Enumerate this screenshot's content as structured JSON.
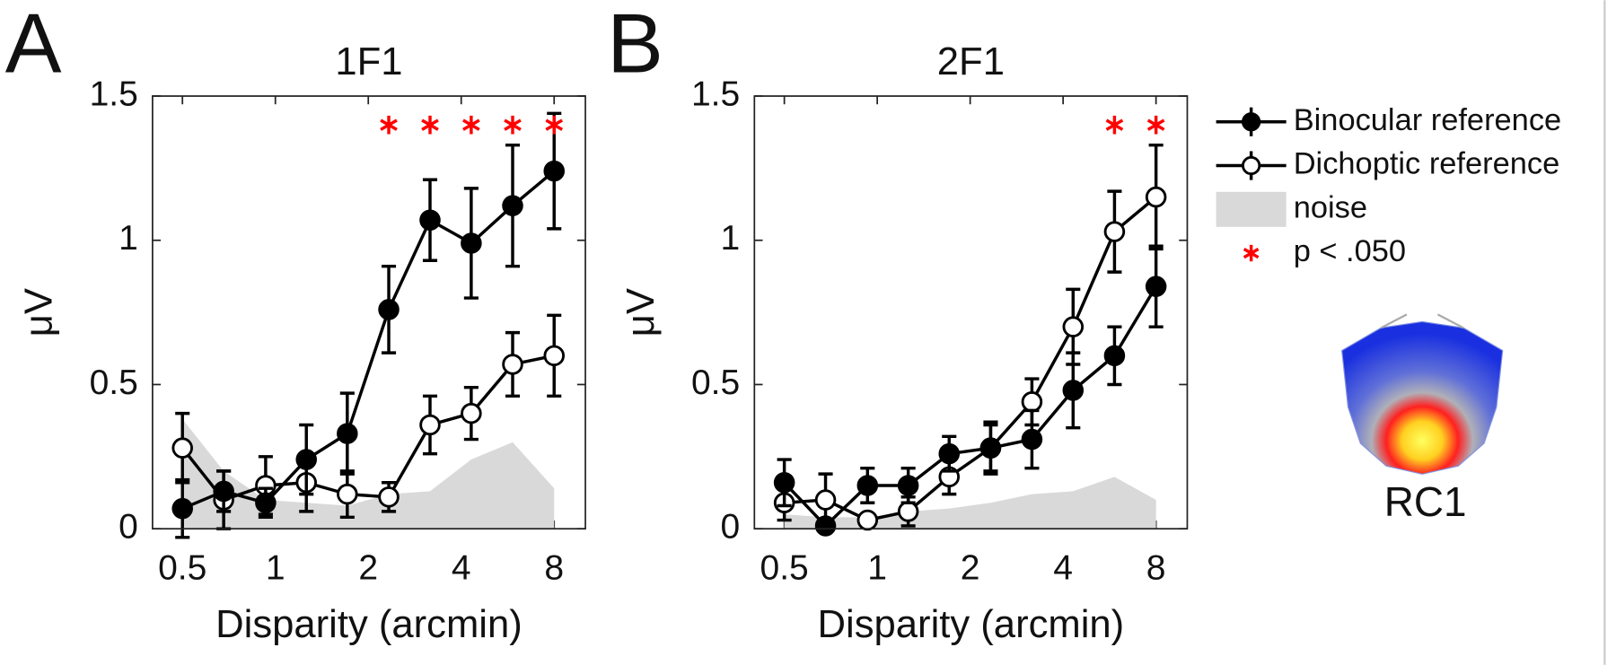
{
  "chart_data": [
    {
      "type": "line",
      "panel_label": "A",
      "title": "1F1",
      "xlabel": "Disparity (arcmin)",
      "ylabel": "μV",
      "xscale": "log",
      "xlim": [
        0.4,
        10.1
      ],
      "xticks": [
        0.5,
        1,
        2,
        4,
        8
      ],
      "ylim": [
        0,
        1.5
      ],
      "yticks": [
        0,
        0.5,
        1,
        1.5
      ],
      "x": [
        0.5,
        0.68,
        0.93,
        1.26,
        1.71,
        2.33,
        3.17,
        4.31,
        5.87,
        8
      ],
      "series": [
        {
          "name": "noise",
          "marker": "area",
          "color": "#d9d9d9",
          "values": [
            0.38,
            0.2,
            0.1,
            0.09,
            0.08,
            0.12,
            0.13,
            0.24,
            0.3,
            0.14
          ]
        },
        {
          "name": "Dichoptic reference",
          "marker": "open",
          "color": "#000000",
          "values": [
            0.28,
            0.1,
            0.15,
            0.16,
            0.12,
            0.11,
            0.36,
            0.4,
            0.57,
            0.6
          ],
          "errors": [
            0.12,
            0.1,
            0.1,
            0.1,
            0.08,
            0.05,
            0.1,
            0.09,
            0.11,
            0.14
          ]
        },
        {
          "name": "Binocular reference",
          "marker": "filled",
          "color": "#000000",
          "values": [
            0.07,
            0.13,
            0.09,
            0.24,
            0.33,
            0.76,
            1.07,
            0.99,
            1.12,
            1.24
          ],
          "errors": [
            0.1,
            0.07,
            0.05,
            0.12,
            0.14,
            0.15,
            0.14,
            0.19,
            0.21,
            0.2
          ]
        },
        {
          "name": "p < .050",
          "marker": "asterisk",
          "color": "#ff0000",
          "values": [
            null,
            null,
            null,
            null,
            null,
            1.4,
            1.4,
            1.4,
            1.4,
            1.4
          ]
        }
      ]
    },
    {
      "type": "line",
      "panel_label": "B",
      "title": "2F1",
      "xlabel": "Disparity (arcmin)",
      "ylabel": "μV",
      "xscale": "log",
      "xlim": [
        0.4,
        10.1
      ],
      "xticks": [
        0.5,
        1,
        2,
        4,
        8
      ],
      "ylim": [
        0,
        1.5
      ],
      "yticks": [
        0,
        0.5,
        1,
        1.5
      ],
      "x": [
        0.5,
        0.68,
        0.93,
        1.26,
        1.71,
        2.33,
        3.17,
        4.31,
        5.87,
        8
      ],
      "series": [
        {
          "name": "noise",
          "marker": "area",
          "color": "#d9d9d9",
          "values": [
            0.05,
            0.04,
            0.04,
            0.06,
            0.07,
            0.09,
            0.12,
            0.13,
            0.18,
            0.1
          ]
        },
        {
          "name": "Dichoptic reference",
          "marker": "open",
          "color": "#000000",
          "values": [
            0.09,
            0.1,
            0.03,
            0.06,
            0.18,
            0.28,
            0.44,
            0.7,
            1.03,
            1.15
          ],
          "errors": [
            0.06,
            0.09,
            0.02,
            0.05,
            0.06,
            0.08,
            0.08,
            0.13,
            0.14,
            0.18
          ]
        },
        {
          "name": "Binocular reference",
          "marker": "filled",
          "color": "#000000",
          "values": [
            0.16,
            0.01,
            0.15,
            0.15,
            0.26,
            0.28,
            0.31,
            0.48,
            0.6,
            0.84
          ],
          "errors": [
            0.08,
            0.02,
            0.06,
            0.06,
            0.06,
            0.09,
            0.1,
            0.13,
            0.1,
            0.14
          ]
        },
        {
          "name": "p < .050",
          "marker": "asterisk",
          "color": "#ff0000",
          "values": [
            null,
            null,
            null,
            null,
            null,
            null,
            null,
            null,
            1.4,
            1.4
          ]
        }
      ]
    }
  ],
  "inset_label": "RC1"
}
